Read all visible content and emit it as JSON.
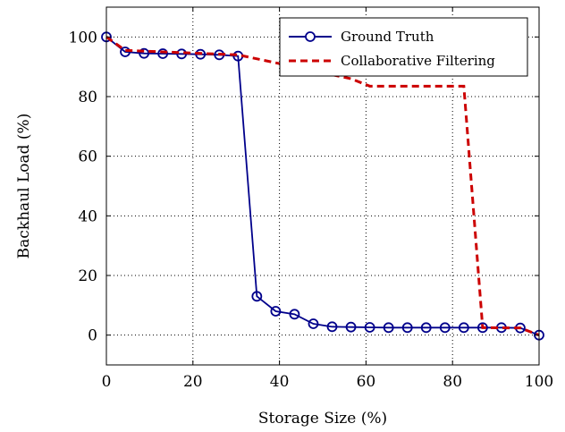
{
  "chart_data": {
    "type": "line",
    "xlabel": "Storage Size (%)",
    "ylabel": "Backhaul Load (%)",
    "xlim": [
      0,
      100
    ],
    "ylim": [
      -10,
      110
    ],
    "xticks": [
      0,
      20,
      40,
      60,
      80,
      100
    ],
    "yticks": [
      0,
      20,
      40,
      60,
      80,
      100
    ],
    "grid": true,
    "legend_position": "top-right",
    "series": [
      {
        "name": "Ground Truth",
        "color": "#00008b",
        "style": "solid-circle-markers",
        "x": [
          0,
          4.35,
          8.7,
          13.04,
          17.39,
          21.74,
          26.09,
          30.43,
          34.78,
          39.13,
          43.48,
          47.83,
          52.17,
          56.52,
          60.87,
          65.22,
          69.57,
          73.91,
          78.26,
          82.61,
          86.96,
          91.3,
          95.65,
          100
        ],
        "y": [
          100,
          95,
          94.5,
          94.4,
          94.3,
          94.2,
          94.0,
          93.6,
          13,
          8,
          7,
          3.8,
          2.8,
          2.7,
          2.6,
          2.5,
          2.5,
          2.5,
          2.5,
          2.5,
          2.5,
          2.5,
          2.4,
          0
        ]
      },
      {
        "name": "Collaborative Filtering",
        "color": "#cc0000",
        "style": "dashed",
        "x": [
          0,
          4.35,
          30.43,
          56.52,
          60.87,
          82.61,
          86.96,
          95.65,
          100
        ],
        "y": [
          100,
          95.5,
          94,
          86,
          83.5,
          83.5,
          2.5,
          2.4,
          0
        ]
      }
    ]
  }
}
